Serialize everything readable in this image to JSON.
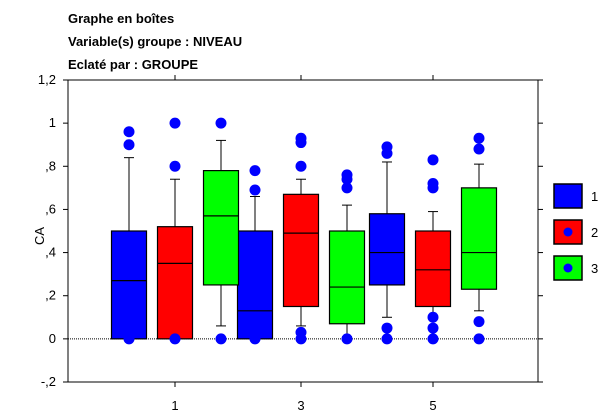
{
  "chart_data": {
    "type": "box",
    "title_lines": [
      "Graphe en boîtes",
      "Variable(s) groupe : NIVEAU",
      "Eclaté par : GROUPE"
    ],
    "ylabel": "CA",
    "xlabel": "",
    "ylim": [
      -0.2,
      1.2
    ],
    "yticks": [
      -0.2,
      0,
      0.2,
      0.4,
      0.6,
      0.8,
      1,
      1.2
    ],
    "ytick_labels": [
      "-,2",
      "0",
      ",2",
      ",4",
      ",6",
      ",8",
      "1",
      "1,2"
    ],
    "categories": [
      "1",
      "3",
      "5"
    ],
    "reference_line": 0,
    "legend_position": "right",
    "series": [
      {
        "name": "1",
        "color": "#0000ff",
        "marker_color": "#0000ff",
        "boxes": [
          {
            "category": "1",
            "whisker_low": 0,
            "q1": 0,
            "median": 0.27,
            "q3": 0.5,
            "whisker_high": 0.84,
            "outliers": [
              0.96,
              0.9,
              0.0
            ]
          },
          {
            "category": "3",
            "whisker_low": 0,
            "q1": 0,
            "median": 0.13,
            "q3": 0.5,
            "whisker_high": 0.66,
            "outliers": [
              0.78,
              0.69,
              0.0
            ]
          },
          {
            "category": "5",
            "whisker_low": 0.1,
            "q1": 0.25,
            "median": 0.4,
            "q3": 0.58,
            "whisker_high": 0.82,
            "outliers": [
              0.89,
              0.86,
              0.05,
              0.0
            ]
          }
        ]
      },
      {
        "name": "2",
        "color": "#ff0000",
        "marker_color": "#0000ff",
        "boxes": [
          {
            "category": "1",
            "whisker_low": 0,
            "q1": 0,
            "median": 0.35,
            "q3": 0.52,
            "whisker_high": 0.74,
            "outliers": [
              1.0,
              0.8,
              0.0
            ]
          },
          {
            "category": "3",
            "whisker_low": 0.06,
            "q1": 0.15,
            "median": 0.49,
            "q3": 0.67,
            "whisker_high": 0.74,
            "outliers": [
              0.93,
              0.91,
              0.8,
              0.03,
              0.0
            ]
          },
          {
            "category": "5",
            "whisker_low": 0.1,
            "q1": 0.15,
            "median": 0.32,
            "q3": 0.5,
            "whisker_high": 0.59,
            "outliers": [
              0.83,
              0.72,
              0.7,
              0.1,
              0.05,
              0.0
            ]
          }
        ]
      },
      {
        "name": "3",
        "color": "#00ff00",
        "marker_color": "#0000ff",
        "boxes": [
          {
            "category": "1",
            "whisker_low": 0.06,
            "q1": 0.25,
            "median": 0.57,
            "q3": 0.78,
            "whisker_high": 0.92,
            "outliers": [
              1.0,
              0.0
            ]
          },
          {
            "category": "3",
            "whisker_low": 0.01,
            "q1": 0.07,
            "median": 0.24,
            "q3": 0.5,
            "whisker_high": 0.62,
            "outliers": [
              0.76,
              0.74,
              0.7,
              0.0
            ]
          },
          {
            "category": "5",
            "whisker_low": 0.13,
            "q1": 0.23,
            "median": 0.4,
            "q3": 0.7,
            "whisker_high": 0.81,
            "outliers": [
              0.93,
              0.88,
              0.08,
              0.0
            ]
          }
        ]
      }
    ]
  }
}
